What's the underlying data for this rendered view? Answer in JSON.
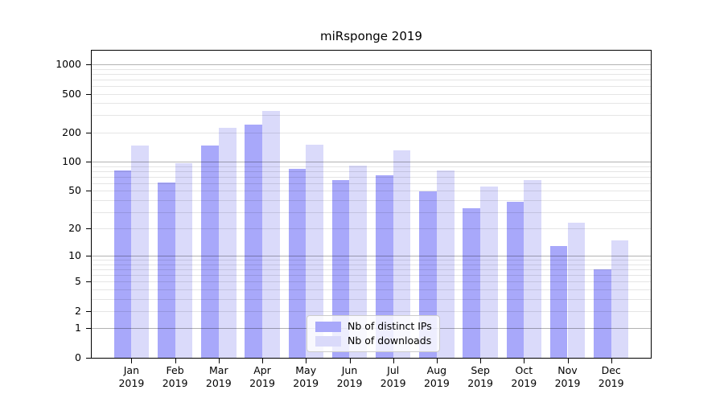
{
  "chart_data": {
    "type": "bar",
    "title": "miRsponge 2019",
    "categories": [
      "Jan",
      "Feb",
      "Mar",
      "Apr",
      "May",
      "Jun",
      "Jul",
      "Aug",
      "Sep",
      "Oct",
      "Nov",
      "Dec"
    ],
    "category_year": "2019",
    "series": [
      {
        "name": "Nb of distinct IPs",
        "color": "#a8a8fa",
        "values": [
          81,
          61,
          148,
          239,
          85,
          64,
          73,
          49,
          33,
          38,
          13,
          7
        ]
      },
      {
        "name": "Nb of downloads",
        "color": "#dadafa",
        "values": [
          146,
          96,
          222,
          333,
          151,
          92,
          130,
          81,
          55,
          65,
          23,
          15
        ]
      }
    ],
    "xlabel": "",
    "ylabel": "",
    "yscale": "log1p",
    "ylim": [
      0,
      1378
    ],
    "yticks": [
      1000,
      500,
      200,
      100,
      50,
      20,
      10,
      5,
      2,
      1,
      0
    ],
    "gridlines_major": [
      1,
      10,
      100,
      1000
    ],
    "gridlines_minor": [
      2,
      3,
      4,
      5,
      6,
      7,
      8,
      9,
      20,
      30,
      40,
      50,
      60,
      70,
      80,
      90,
      200,
      300,
      400,
      500,
      600,
      700,
      800,
      900
    ],
    "grid": true,
    "legend_position": "inside-bottom-center",
    "colors": {
      "axis": "#000000",
      "major_grid": "rgba(0,0,0,0.30)",
      "minor_grid": "rgba(0,0,0,0.10)"
    }
  }
}
